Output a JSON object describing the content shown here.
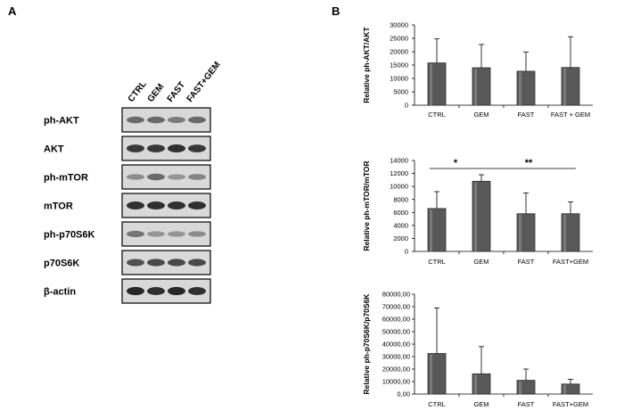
{
  "panels": {
    "a": "A",
    "b": "B"
  },
  "western_blot": {
    "lanes": [
      "CTRL",
      "GEM",
      "FAST",
      "FAST+GEM"
    ],
    "rows": [
      {
        "label": "ph-AKT",
        "intensity": [
          0.55,
          0.55,
          0.45,
          0.55
        ]
      },
      {
        "label": "AKT",
        "intensity": [
          0.85,
          0.85,
          0.9,
          0.85
        ]
      },
      {
        "label": "ph-mTOR",
        "intensity": [
          0.35,
          0.55,
          0.3,
          0.4
        ]
      },
      {
        "label": "mTOR",
        "intensity": [
          0.9,
          0.9,
          0.9,
          0.9
        ]
      },
      {
        "label": "ph-p70S6K",
        "intensity": [
          0.5,
          0.3,
          0.3,
          0.35
        ]
      },
      {
        "label": "p70S6K",
        "intensity": [
          0.7,
          0.75,
          0.75,
          0.75
        ]
      },
      {
        "label": "β-actin",
        "intensity": [
          0.95,
          0.9,
          0.95,
          0.9
        ]
      }
    ]
  },
  "chart_data": [
    {
      "type": "bar",
      "categories": [
        "CTRL",
        "GEM",
        "FAST",
        "FAST + GEM"
      ],
      "values": [
        15800,
        14000,
        12700,
        14100
      ],
      "errors": [
        9000,
        8700,
        7200,
        11500
      ],
      "ylabel": "Relative ph-AKT/AKT",
      "ylim": [
        0,
        30000
      ],
      "yticks": [
        "0",
        "5000",
        "10000",
        "15000",
        "20000",
        "25000",
        "30000"
      ],
      "significance": []
    },
    {
      "type": "bar",
      "categories": [
        "CTRL",
        "GEM",
        "FAST",
        "FAST+GEM"
      ],
      "values": [
        6600,
        10800,
        5800,
        5800
      ],
      "errors": [
        2600,
        1000,
        3200,
        1800
      ],
      "ylabel": "Relative ph-mTOR/mTOR",
      "ylim": [
        0,
        14000
      ],
      "yticks": [
        "0",
        "2000",
        "4000",
        "6000",
        "8000",
        "10000",
        "12000",
        "14000"
      ],
      "significance": [
        {
          "from": 0,
          "to": 1,
          "label": "*"
        },
        {
          "from": 1,
          "to": 3,
          "label": "**"
        }
      ]
    },
    {
      "type": "bar",
      "categories": [
        "CTRL",
        "GEM",
        "FAST",
        "FAST+GEM"
      ],
      "values": [
        32500,
        16200,
        11000,
        8000
      ],
      "errors": [
        36500,
        21800,
        9000,
        3800
      ],
      "ylabel": "Relative ph-p70S6K/p70S6K",
      "ylim": [
        0,
        80000
      ],
      "yticks": [
        "0,00",
        "10000,00",
        "20000,00",
        "30000,00",
        "40000,00",
        "50000,00",
        "60000,00",
        "70000,00",
        "80000,00"
      ],
      "significance": []
    }
  ]
}
